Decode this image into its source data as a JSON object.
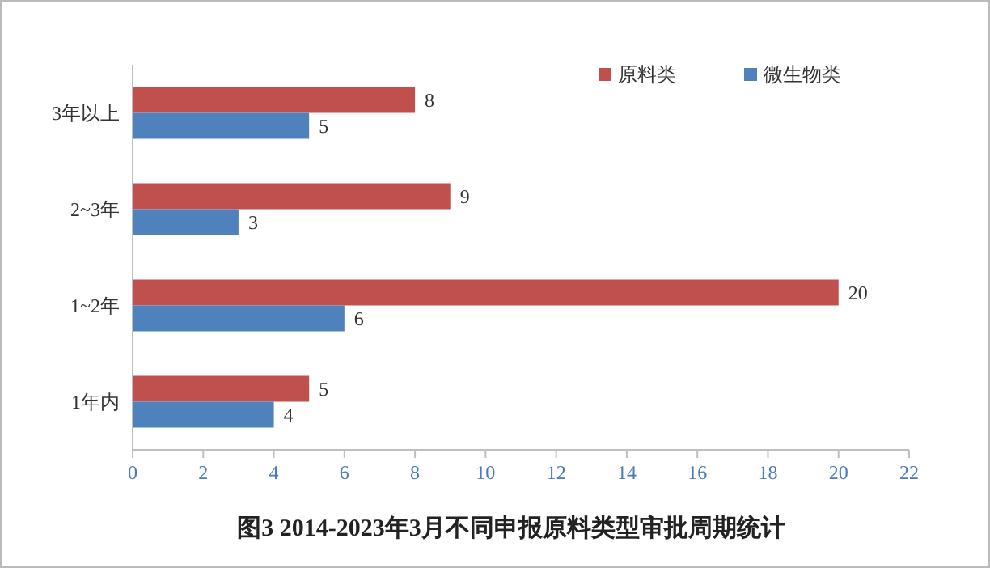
{
  "chart_data": {
    "type": "bar",
    "orientation": "horizontal",
    "title": "图3 2014-2023年3月不同申报原料类型审批周期统计",
    "categories": [
      "3年以上",
      "2~3年",
      "1~2年",
      "1年内"
    ],
    "series": [
      {
        "name": "原料类",
        "color": "#c0504d",
        "values": [
          8,
          9,
          20,
          5
        ]
      },
      {
        "name": "微生物类",
        "color": "#4f81bd",
        "values": [
          5,
          3,
          6,
          4
        ]
      }
    ],
    "xlim": [
      0,
      22
    ],
    "xticks": [
      0,
      2,
      4,
      6,
      8,
      10,
      12,
      14,
      16,
      18,
      20,
      22
    ],
    "data_labels": true,
    "legend": "top right",
    "grid": false
  }
}
